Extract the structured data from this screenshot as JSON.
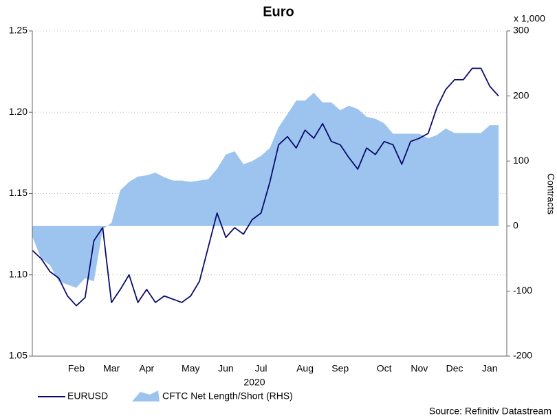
{
  "chart_data": {
    "type": "line",
    "title": "Euro",
    "xlabel": "2020",
    "ylabel_right": "Contracts",
    "y2_unit": "x 1,000",
    "source": "Source: Refinitiv Datastream",
    "categories": [
      null,
      null,
      null,
      null,
      null,
      "Feb",
      null,
      null,
      null,
      "Mar",
      null,
      null,
      null,
      "Apr",
      null,
      null,
      null,
      null,
      "May",
      null,
      null,
      null,
      "Jun",
      null,
      null,
      null,
      "Jul",
      null,
      null,
      null,
      null,
      "Aug",
      null,
      null,
      null,
      "Sep",
      null,
      null,
      null,
      null,
      "Oct",
      null,
      null,
      null,
      "Nov",
      null,
      null,
      null,
      "Dec",
      null,
      null,
      null,
      "Jan",
      null
    ],
    "ylim": [
      1.05,
      1.25
    ],
    "yticks": [
      1.05,
      {
        "value": 1.1,
        "label": "1.10"
      },
      1.15,
      {
        "value": 1.2,
        "label": "1.20"
      },
      1.25
    ],
    "y2lim": [
      -200,
      300
    ],
    "y2ticks": [
      -200,
      -100,
      0,
      100,
      200,
      300
    ],
    "grid": true,
    "legend": "bottom",
    "series": [
      {
        "name": "EURUSD",
        "color": "#0a0a6e",
        "type": "line",
        "values": [
          1.115,
          1.11,
          1.102,
          1.098,
          1.087,
          1.081,
          1.086,
          1.121,
          1.129,
          1.083,
          1.091,
          1.1,
          1.083,
          1.091,
          1.083,
          1.087,
          1.085,
          1.083,
          1.087,
          1.096,
          1.117,
          1.138,
          1.123,
          1.129,
          1.125,
          1.134,
          1.138,
          1.157,
          1.18,
          1.185,
          1.178,
          1.189,
          1.184,
          1.193,
          1.182,
          1.18,
          1.172,
          1.165,
          1.178,
          1.174,
          1.182,
          1.18,
          1.168,
          1.182,
          1.184,
          1.187,
          1.203,
          1.214,
          1.22,
          1.22,
          1.227,
          1.227,
          1.216,
          1.21
        ]
      },
      {
        "name": "CFTC Net Length/Short (RHS)",
        "color": "#9cc4ee",
        "type": "area",
        "axis": "y2",
        "values": [
          -16,
          -50,
          -60,
          -85,
          -90,
          -95,
          -80,
          -85,
          -5,
          5,
          55,
          68,
          76,
          78,
          82,
          75,
          70,
          70,
          68,
          70,
          72,
          88,
          110,
          115,
          95,
          100,
          108,
          120,
          152,
          172,
          193,
          193,
          205,
          190,
          190,
          178,
          185,
          180,
          168,
          165,
          158,
          142,
          142,
          142,
          142,
          135,
          140,
          150,
          143,
          143,
          143,
          143,
          155,
          155
        ]
      }
    ]
  }
}
